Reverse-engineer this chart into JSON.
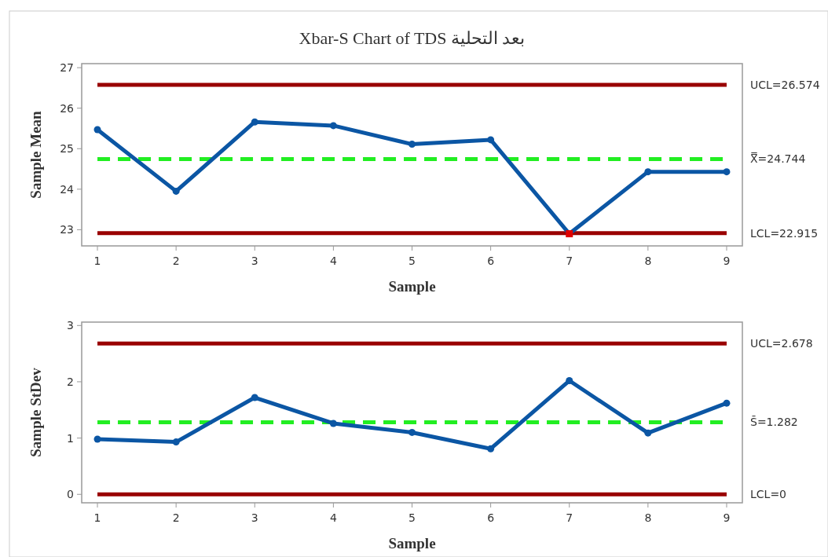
{
  "chart_data": [
    {
      "type": "line",
      "title": "Xbar-S Chart of TDS بعد التحلية",
      "xlabel": "Sample",
      "ylabel": "Sample Mean",
      "x": [
        1,
        2,
        3,
        4,
        5,
        6,
        7,
        8,
        9
      ],
      "xlim": [
        0.8,
        9.2
      ],
      "xticks": [
        1,
        2,
        3,
        4,
        5,
        6,
        7,
        8,
        9
      ],
      "ylim": [
        22.6,
        27.1
      ],
      "yticks": [
        23,
        24,
        25,
        26,
        27
      ],
      "grid": false,
      "marker": "circle",
      "line_style": "solid",
      "series": [
        {
          "color": "#0b56a4",
          "values": [
            25.47,
            23.95,
            25.66,
            25.57,
            25.11,
            25.22,
            22.9,
            24.43,
            24.43
          ],
          "colors": [
            "#0b56a4",
            "#0b56a4",
            "#0b56a4",
            "#0b56a4",
            "#0b56a4",
            "#0b56a4",
            "#e00000",
            "#0b56a4",
            "#0b56a4"
          ]
        }
      ],
      "ref_lines": [
        {
          "axis": "y",
          "value": 26.574,
          "label": "UCL=26.574",
          "color": "#990000",
          "line_style": "solid"
        },
        {
          "axis": "y",
          "value": 24.744,
          "label": "X̿=24.744",
          "color": "#22ee22",
          "line_style": "dashed"
        },
        {
          "axis": "y",
          "value": 22.915,
          "label": "LCL=22.915",
          "color": "#990000",
          "line_style": "solid"
        }
      ]
    },
    {
      "type": "line",
      "xlabel": "Sample",
      "ylabel": "Sample StDev",
      "x": [
        1,
        2,
        3,
        4,
        5,
        6,
        7,
        8,
        9
      ],
      "xlim": [
        0.8,
        9.2
      ],
      "xticks": [
        1,
        2,
        3,
        4,
        5,
        6,
        7,
        8,
        9
      ],
      "ylim": [
        -0.15,
        3.06
      ],
      "yticks": [
        0,
        1,
        2,
        3
      ],
      "grid": false,
      "marker": "circle",
      "line_style": "solid",
      "series": [
        {
          "color": "#0b56a4",
          "values": [
            0.98,
            0.93,
            1.72,
            1.26,
            1.1,
            0.81,
            2.02,
            1.09,
            1.62
          ]
        }
      ],
      "ref_lines": [
        {
          "axis": "y",
          "value": 2.678,
          "label": "UCL=2.678",
          "color": "#990000",
          "line_style": "solid"
        },
        {
          "axis": "y",
          "value": 1.282,
          "label": "S̄=1.282",
          "color": "#22ee22",
          "line_style": "dashed"
        },
        {
          "axis": "y",
          "value": 0,
          "label": "LCL=0",
          "color": "#990000",
          "line_style": "solid"
        }
      ]
    }
  ]
}
